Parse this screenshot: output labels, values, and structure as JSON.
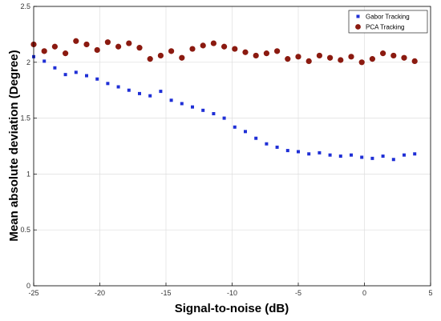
{
  "chart_data": {
    "type": "scatter",
    "title": "",
    "xlabel": "Signal-to-noise (dB)",
    "ylabel": "Mean absolute deviation (Degree)",
    "xlim": [
      -25,
      5
    ],
    "ylim": [
      0,
      2.5
    ],
    "x_ticks": [
      -25,
      -20,
      -15,
      -10,
      -5,
      0,
      5
    ],
    "y_ticks": [
      0,
      0.5,
      1,
      1.5,
      2,
      2.5
    ],
    "x_tick_labels": [
      "-25",
      "-20",
      "-15",
      "-10",
      "-5",
      "0",
      "5"
    ],
    "y_tick_labels": [
      "0",
      "0.5",
      "1",
      "1.5",
      "2",
      "2.5"
    ],
    "grid": true,
    "legend_position": "top-right",
    "series": [
      {
        "name": "Gabor Tracking",
        "marker": "square",
        "color": "#1f2fd6",
        "x": [
          -25,
          -24.2,
          -23.4,
          -22.6,
          -21.8,
          -21,
          -20.2,
          -19.4,
          -18.6,
          -17.8,
          -17,
          -16.2,
          -15.4,
          -14.6,
          -13.8,
          -13,
          -12.2,
          -11.4,
          -10.6,
          -9.8,
          -9,
          -8.2,
          -7.4,
          -6.6,
          -5.8,
          -5,
          -4.2,
          -3.4,
          -2.6,
          -1.8,
          -1,
          -0.2,
          0.6,
          1.4,
          2.2,
          3,
          3.8
        ],
        "y": [
          2.05,
          2.01,
          1.95,
          1.89,
          1.91,
          1.88,
          1.85,
          1.81,
          1.78,
          1.75,
          1.72,
          1.7,
          1.74,
          1.66,
          1.63,
          1.6,
          1.57,
          1.54,
          1.5,
          1.42,
          1.38,
          1.32,
          1.27,
          1.24,
          1.21,
          1.2,
          1.18,
          1.19,
          1.17,
          1.16,
          1.17,
          1.15,
          1.14,
          1.16,
          1.13,
          1.17,
          1.18
        ]
      },
      {
        "name": "PCA Tracking",
        "marker": "circle",
        "color": "#8b1a10",
        "x": [
          -25,
          -24.2,
          -23.4,
          -22.6,
          -21.8,
          -21,
          -20.2,
          -19.4,
          -18.6,
          -17.8,
          -17,
          -16.2,
          -15.4,
          -14.6,
          -13.8,
          -13,
          -12.2,
          -11.4,
          -10.6,
          -9.8,
          -9,
          -8.2,
          -7.4,
          -6.6,
          -5.8,
          -5,
          -4.2,
          -3.4,
          -2.6,
          -1.8,
          -1,
          -0.2,
          0.6,
          1.4,
          2.2,
          3,
          3.8
        ],
        "y": [
          2.16,
          2.1,
          2.14,
          2.08,
          2.19,
          2.16,
          2.11,
          2.18,
          2.14,
          2.17,
          2.13,
          2.03,
          2.06,
          2.1,
          2.04,
          2.12,
          2.15,
          2.17,
          2.14,
          2.12,
          2.09,
          2.06,
          2.08,
          2.1,
          2.03,
          2.05,
          2.01,
          2.06,
          2.04,
          2.02,
          2.05,
          2.0,
          2.03,
          2.08,
          2.06,
          2.04,
          2.01
        ]
      }
    ]
  }
}
